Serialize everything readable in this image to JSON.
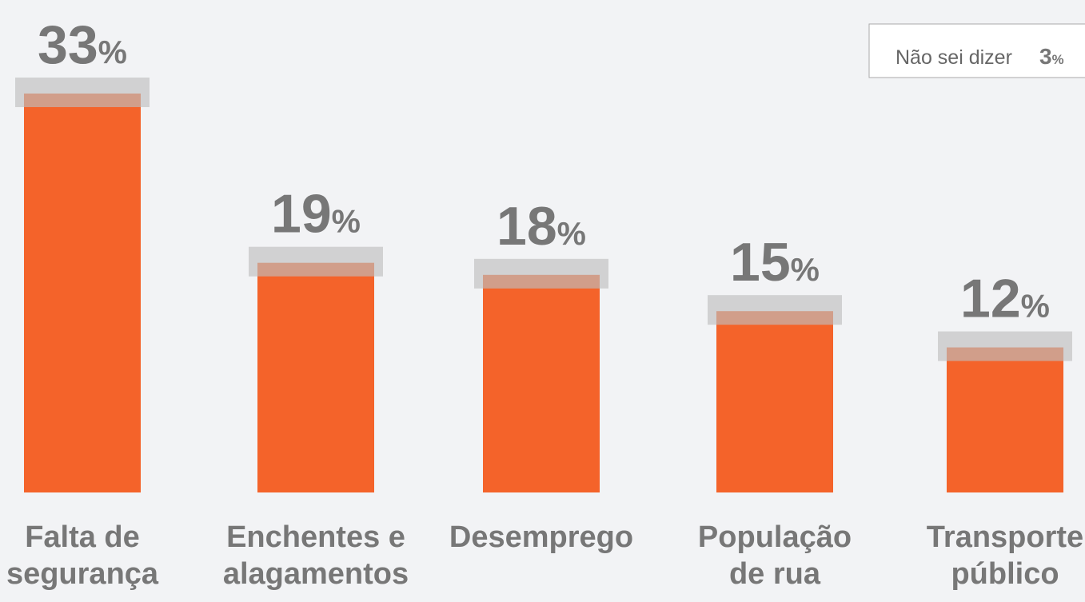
{
  "chart_data": {
    "type": "bar",
    "categories": [
      "Falta de\nsegurança",
      "Enchentes e\nalagamentos",
      "Desemprego",
      "População\nde rua",
      "Transporte\npúblico"
    ],
    "values": [
      33,
      19,
      18,
      15,
      12
    ],
    "value_labels": [
      "33%",
      "19%",
      "18%",
      "15%",
      "12%"
    ],
    "color": "#f4632a",
    "annotation": {
      "label": "Não sei dizer",
      "value": 3,
      "value_label": "3%"
    }
  }
}
